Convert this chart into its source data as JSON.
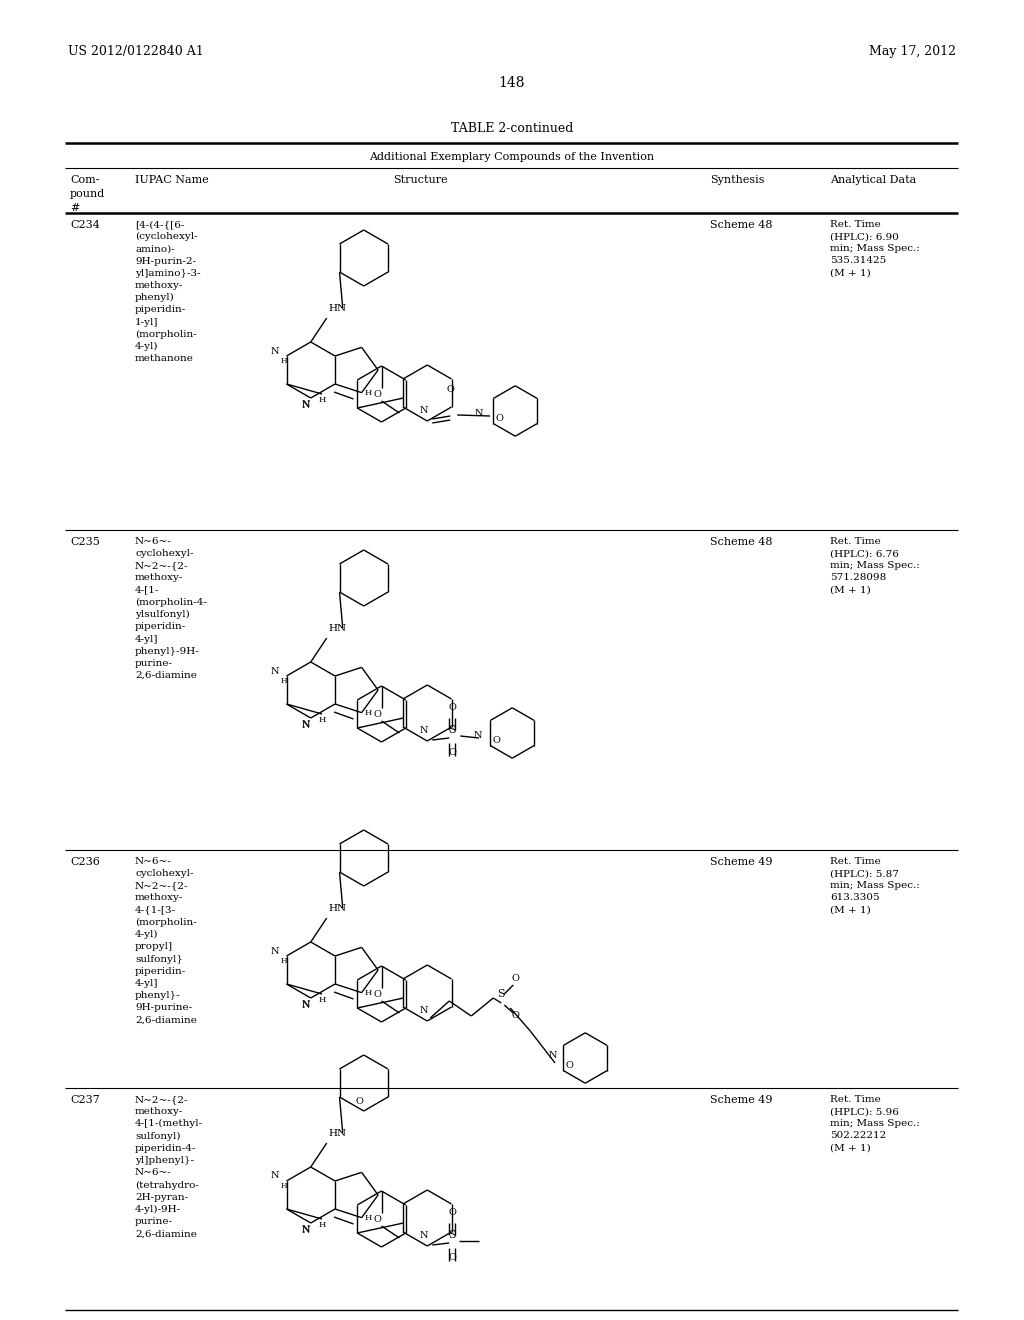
{
  "page_header_left": "US 2012/0122840 A1",
  "page_header_right": "May 17, 2012",
  "page_number": "148",
  "table_title": "TABLE 2-continued",
  "table_subtitle": "Additional Exemplary Compounds of the Invention",
  "compounds": [
    {
      "id": "C234",
      "iupac": "[4-(4-{[6-\n(cyclohexyl-\namino)-\n9H-purin-2-\nyl]amino}-3-\nmethoxy-\nphenyl)\npiperidin-\n1-yl]\n(morpholin-\n4-yl)\nmethanone",
      "synthesis": "Scheme 48",
      "analytical": "Ret. Time\n(HPLC): 6.90\nmin; Mass Spec.:\n535.31425\n(M + 1)"
    },
    {
      "id": "C235",
      "iupac": "N~6~-\ncyclohexyl-\nN~2~-{2-\nmethoxy-\n4-[1-\n(morpholin-4-\nylsulfonyl)\npiperidin-\n4-yl]\nphenyl}-9H-\npurine-\n2,6-diamine",
      "synthesis": "Scheme 48",
      "analytical": "Ret. Time\n(HPLC): 6.76\nmin; Mass Spec.:\n571.28098\n(M + 1)"
    },
    {
      "id": "C236",
      "iupac": "N~6~-\ncyclohexyl-\nN~2~-{2-\nmethoxy-\n4-{1-[3-\n(morpholin-\n4-yl)\npropyl]\nsulfonyl}\npiperidin-\n4-yl]\nphenyl}-\n9H-purine-\n2,6-diamine",
      "synthesis": "Scheme 49",
      "analytical": "Ret. Time\n(HPLC): 5.87\nmin; Mass Spec.:\n613.3305\n(M + 1)"
    },
    {
      "id": "C237",
      "iupac": "N~2~-{2-\nmethoxy-\n4-[1-(methyl-\nsulfonyl)\npiperidin-4-\nyl]phenyl}-\nN~6~-\n(tetrahydro-\n2H-pyran-\n4-yl)-9H-\npurine-\n2,6-diamine",
      "synthesis": "Scheme 49",
      "analytical": "Ret. Time\n(HPLC): 5.96\nmin; Mass Spec.:\n502.22212\n(M + 1)"
    }
  ],
  "row_tops": [
    215,
    532,
    852,
    1090
  ],
  "row_bottoms": [
    530,
    850,
    1088,
    1310
  ],
  "bg_color": "#ffffff"
}
